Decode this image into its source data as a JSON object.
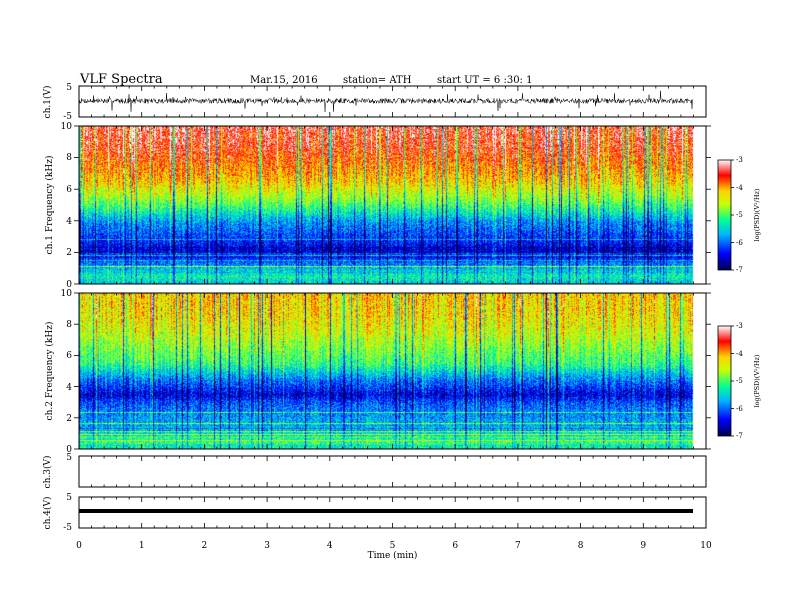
{
  "header": {
    "title": "VLF Spectra",
    "date": "Mar.15, 2016",
    "station": "station= ATH",
    "start": "start UT = 6 :30: 1"
  },
  "colors": {
    "background": "#ffffff",
    "axes": "#000000",
    "colormap": [
      "#00004d",
      "#0000ff",
      "#00b4ff",
      "#00ff96",
      "#c8ff00",
      "#ffd200",
      "#ff0000",
      "#ffffff"
    ]
  },
  "chart_data": [
    {
      "type": "line",
      "id": "ch1-waveform",
      "ylabel": "ch.1(V)",
      "ylim": [
        -5,
        5
      ],
      "yticks": [
        "5",
        "-5"
      ],
      "xlim": [
        0,
        10
      ],
      "data_extent": [
        0,
        9.8
      ],
      "series": [
        {
          "values_summary": {
            "mean": 0.2,
            "typical_amplitude": 1.2,
            "max_spike": 3.0
          }
        }
      ]
    },
    {
      "type": "heatmap",
      "id": "ch1-spectrogram",
      "ylabel": "ch.1 Frequency (kHz)",
      "ylim": [
        0,
        10
      ],
      "yticks": [
        "0",
        "2",
        "4",
        "6",
        "8",
        "10"
      ],
      "xlim": [
        0,
        10
      ],
      "data_extent": [
        0,
        9.8
      ],
      "colorbar": {
        "label": "log(PSD)(V²/Hz)",
        "range": [
          -7,
          -3
        ],
        "ticks": [
          "-3",
          "-4",
          "-5",
          "-6",
          "-7"
        ]
      },
      "profile": {
        "freq_kHz": [
          0,
          0.5,
          1,
          2,
          3,
          4,
          4.6,
          5.5,
          6.5,
          7.5,
          8.5,
          10
        ],
        "logPSD": [
          -5.6,
          -5.3,
          -5.6,
          -6.6,
          -6.2,
          -5.8,
          -5.3,
          -4.7,
          -4.2,
          -3.9,
          -3.6,
          -3.4
        ]
      }
    },
    {
      "type": "heatmap",
      "id": "ch2-spectrogram",
      "ylabel": "ch.2 Frequency (kHz)",
      "ylim": [
        0,
        10
      ],
      "yticks": [
        "0",
        "2",
        "4",
        "6",
        "8",
        "10"
      ],
      "xlim": [
        0,
        10
      ],
      "data_extent": [
        0,
        9.8
      ],
      "colorbar": {
        "label": "log(PSD)(V²/Hz)",
        "range": [
          -7,
          -3
        ],
        "ticks": [
          "-3",
          "-4",
          "-5",
          "-6",
          "-7"
        ]
      },
      "profile": {
        "freq_kHz": [
          0,
          0.5,
          1,
          2,
          3,
          3.5,
          4.5,
          5.5,
          6.5,
          7.5,
          8.5,
          10
        ],
        "logPSD": [
          -5.4,
          -5.1,
          -5.5,
          -5.8,
          -6.1,
          -6.5,
          -5.9,
          -5.1,
          -4.8,
          -4.5,
          -4.3,
          -4.2
        ]
      }
    },
    {
      "type": "line",
      "id": "ch3-waveform",
      "ylabel": "ch.3(V)",
      "ylim": [
        -5,
        5
      ],
      "yticks": [
        "5"
      ],
      "xlim": [
        0,
        10
      ],
      "series": []
    },
    {
      "type": "line",
      "id": "ch4-waveform",
      "ylabel": "ch.4(V)",
      "ylim": [
        -5,
        5
      ],
      "yticks": [
        "5",
        "-5"
      ],
      "xlim": [
        0,
        10
      ],
      "data_extent": [
        0,
        9.8
      ],
      "series": [
        {
          "values_summary": {
            "constant": 0.2
          }
        }
      ]
    }
  ],
  "xaxis": {
    "label": "Time (min)",
    "ticks": [
      "0",
      "1",
      "2",
      "3",
      "4",
      "5",
      "6",
      "7",
      "8",
      "9",
      "10"
    ]
  }
}
